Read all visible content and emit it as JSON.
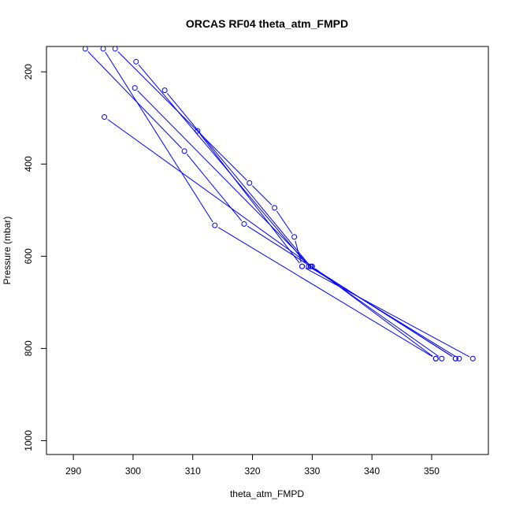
{
  "chart_data": {
    "type": "line",
    "title": "ORCAS RF04 theta_atm_FMPD",
    "xlabel": "theta_atm_FMPD",
    "ylabel": "Pressure (mbar)",
    "xlim": [
      285.5,
      359.5
    ],
    "ylim": [
      1030,
      145
    ],
    "y_reversed": true,
    "xticks": [
      290,
      300,
      310,
      320,
      330,
      340,
      350
    ],
    "yticks": [
      200,
      400,
      600,
      800,
      1000
    ],
    "grid": false,
    "colors": {
      "series": "#0000ff",
      "axis": "#000000"
    },
    "series": [
      {
        "x": [
          350.7,
          330.0,
          295.2
        ],
        "y": [
          822,
          622,
          298
        ]
      },
      {
        "x": [
          351.7,
          329.8,
          300.3
        ],
        "y": [
          822,
          622,
          235
        ]
      },
      {
        "x": [
          354.0,
          329.7,
          305.3
        ],
        "y": [
          822,
          622,
          240
        ]
      },
      {
        "x": [
          354.6,
          329.4,
          300.5
        ],
        "y": [
          822,
          622,
          178
        ]
      },
      {
        "x": [
          356.9,
          328.3,
          310.8
        ],
        "y": [
          822,
          622,
          328
        ]
      },
      {
        "x": [
          350.7,
          313.7,
          295.0
        ],
        "y": [
          822,
          533,
          150
        ]
      },
      {
        "x": [
          354.0,
          318.6,
          308.6,
          292.0
        ],
        "y": [
          822,
          530,
          372,
          150
        ]
      },
      {
        "x": [
          328.3,
          327.0,
          323.7,
          319.5,
          297.0
        ],
        "y": [
          622,
          558,
          495,
          441,
          150
        ]
      }
    ]
  }
}
